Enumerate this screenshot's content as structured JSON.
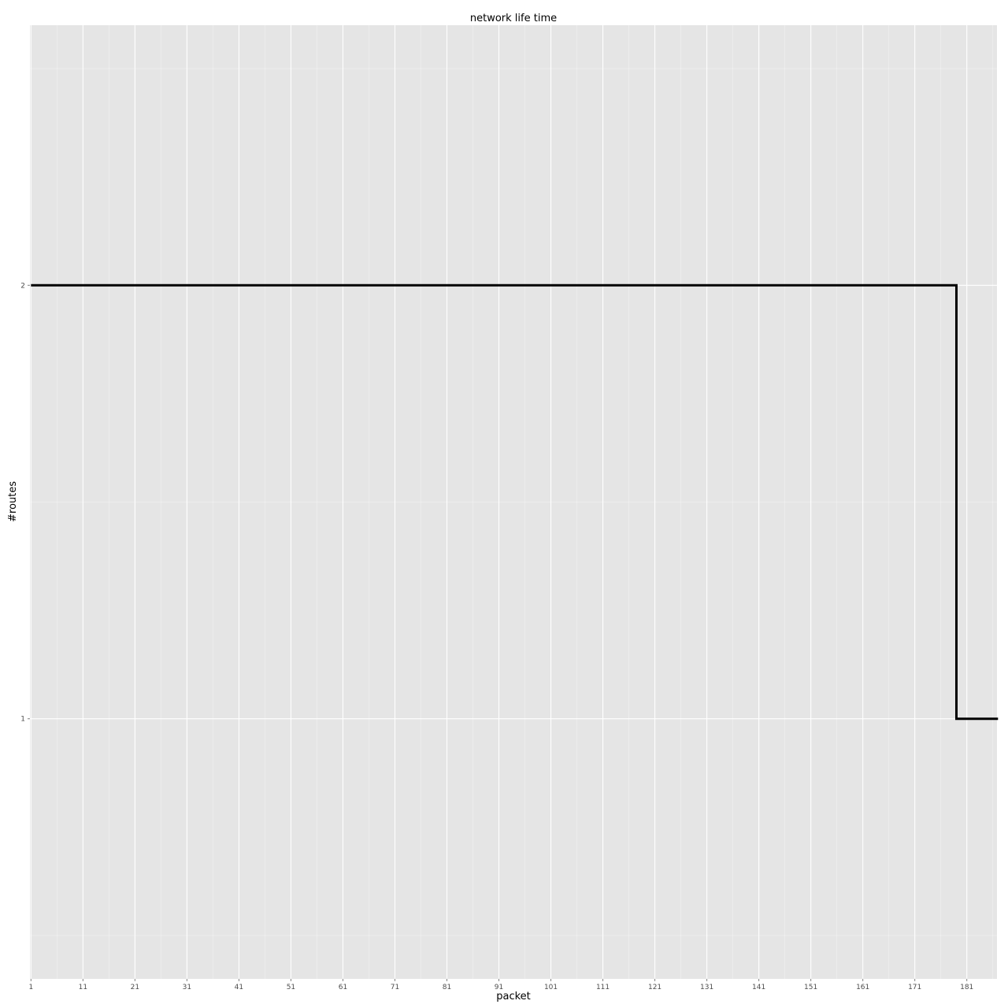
{
  "chart_data": {
    "type": "line",
    "title": "network life time",
    "xlabel": "packet",
    "ylabel": "#routes",
    "x_ticks": [
      "1",
      "11",
      "21",
      "31",
      "41",
      "51",
      "61",
      "71",
      "81",
      "91",
      "101",
      "111",
      "121",
      "131",
      "141",
      "151",
      "161",
      "171",
      "181"
    ],
    "y_ticks": [
      "1",
      "2"
    ],
    "xlim": [
      0.8,
      186.8
    ],
    "ylim": [
      0.4,
      2.6
    ],
    "grid": true,
    "colors": {
      "panel": "#e5e5e5",
      "grid": "#ffffff",
      "line": "#000000"
    },
    "series": [
      {
        "style": "step",
        "x": [
          1,
          179,
          179,
          187
        ],
        "y": [
          2,
          2,
          1,
          1
        ]
      }
    ]
  }
}
